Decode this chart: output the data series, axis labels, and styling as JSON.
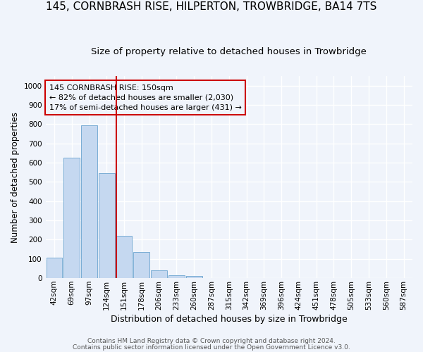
{
  "title": "145, CORNBRASH RISE, HILPERTON, TROWBRIDGE, BA14 7TS",
  "subtitle": "Size of property relative to detached houses in Trowbridge",
  "xlabel": "Distribution of detached houses by size in Trowbridge",
  "ylabel": "Number of detached properties",
  "footer_line1": "Contains HM Land Registry data © Crown copyright and database right 2024.",
  "footer_line2": "Contains public sector information licensed under the Open Government Licence v3.0.",
  "bin_labels": [
    "42sqm",
    "69sqm",
    "97sqm",
    "124sqm",
    "151sqm",
    "178sqm",
    "206sqm",
    "233sqm",
    "260sqm",
    "287sqm",
    "315sqm",
    "342sqm",
    "369sqm",
    "396sqm",
    "424sqm",
    "451sqm",
    "478sqm",
    "505sqm",
    "533sqm",
    "560sqm",
    "587sqm"
  ],
  "bar_values": [
    105,
    625,
    795,
    545,
    220,
    135,
    42,
    15,
    10,
    0,
    0,
    0,
    0,
    0,
    0,
    0,
    0,
    0,
    0,
    0,
    0
  ],
  "bar_color": "#c5d8f0",
  "bar_edge_color": "#7aadd4",
  "red_line_bin_index": 4,
  "red_line_color": "#cc0000",
  "annotation_text_line1": "145 CORNBRASH RISE: 150sqm",
  "annotation_text_line2": "← 82% of detached houses are smaller (2,030)",
  "annotation_text_line3": "17% of semi-detached houses are larger (431) →",
  "ylim": [
    0,
    1050
  ],
  "yticks": [
    0,
    100,
    200,
    300,
    400,
    500,
    600,
    700,
    800,
    900,
    1000
  ],
  "bg_color": "#f0f4fb",
  "grid_color": "#ffffff",
  "title_fontsize": 11,
  "subtitle_fontsize": 9.5,
  "ylabel_fontsize": 8.5,
  "xlabel_fontsize": 9,
  "tick_fontsize": 7.5,
  "footer_fontsize": 6.5
}
